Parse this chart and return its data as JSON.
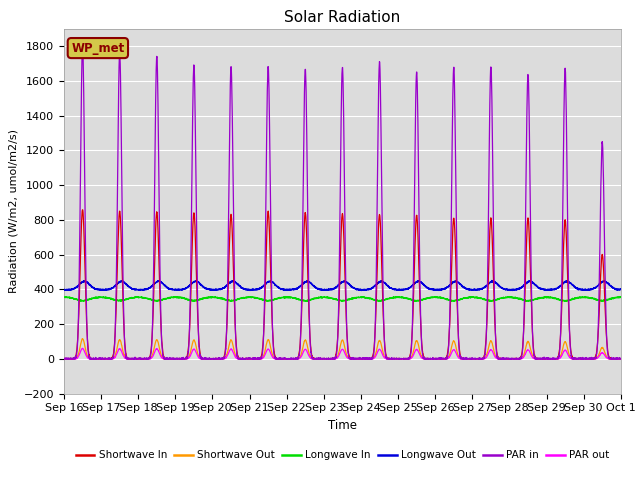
{
  "title": "Solar Radiation",
  "ylabel": "Radiation (W/m2, umol/m2/s)",
  "xlabel": "Time",
  "ylim": [
    -200,
    1900
  ],
  "yticks": [
    -200,
    0,
    200,
    400,
    600,
    800,
    1000,
    1200,
    1400,
    1600,
    1800
  ],
  "bg_color": "#dcdcdc",
  "fig_color": "#ffffff",
  "annotation_text": "WP_met",
  "annotation_bg": "#d4c84a",
  "annotation_border": "#8b0000",
  "n_days": 15,
  "colors": {
    "shortwave_in": "#dd0000",
    "shortwave_out": "#ff9900",
    "longwave_in": "#00dd00",
    "longwave_out": "#0000dd",
    "par_in": "#9900cc",
    "par_out": "#ff00ff"
  },
  "legend_labels": [
    "Shortwave In",
    "Shortwave Out",
    "Longwave In",
    "Longwave Out",
    "PAR in",
    "PAR out"
  ],
  "xtick_labels": [
    "Sep 16",
    "Sep 17",
    "Sep 18",
    "Sep 19",
    "Sep 20",
    "Sep 21",
    "Sep 22",
    "Sep 23",
    "Sep 24",
    "Sep 25",
    "Sep 26",
    "Sep 27",
    "Sep 28",
    "Sep 29",
    "Sep 30",
    "Oct 1"
  ],
  "figsize": [
    6.4,
    4.8
  ],
  "dpi": 100
}
